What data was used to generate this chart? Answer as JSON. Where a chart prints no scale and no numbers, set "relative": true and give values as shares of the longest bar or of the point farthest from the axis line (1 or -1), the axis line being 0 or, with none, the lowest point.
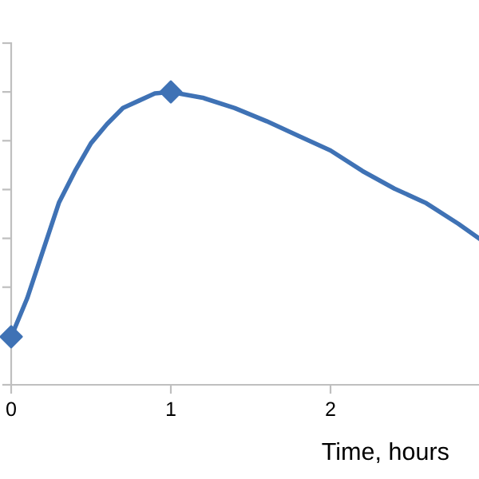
{
  "chart_data": {
    "type": "line",
    "xlabel": "Time, hours",
    "relative": true,
    "xlim": [
      0,
      2.93
    ],
    "xticks": [
      0,
      1,
      2
    ],
    "grid": false,
    "legend": false,
    "series": [
      {
        "color": "#3f72b5",
        "marker": "none",
        "x": [
          0,
          0.1,
          0.2,
          0.3,
          0.4,
          0.5,
          0.6,
          0.7,
          0.8,
          0.9,
          1,
          1.2,
          1.4,
          1.6,
          1.8,
          2,
          2.2,
          2.4,
          2.6,
          2.8,
          2.93
        ],
        "values": [
          0.164,
          0.295,
          0.459,
          0.623,
          0.73,
          0.825,
          0.89,
          0.945,
          0.97,
          0.995,
          1,
          0.98,
          0.945,
          0.9,
          0.85,
          0.8,
          0.73,
          0.67,
          0.62,
          0.55,
          0.5
        ]
      },
      {
        "type": "scatter",
        "color": "#3f72b5",
        "marker": "diamond",
        "x": [
          0,
          1
        ],
        "values": [
          0.164,
          1
        ]
      }
    ]
  }
}
